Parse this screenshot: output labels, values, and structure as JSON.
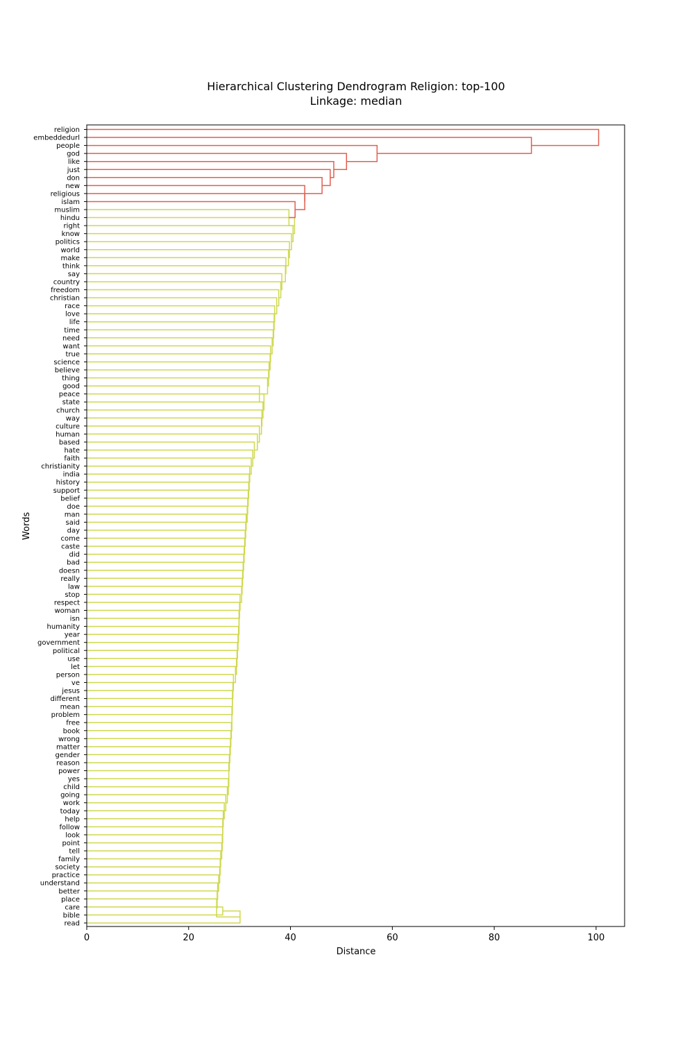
{
  "chart_data": {
    "type": "dendrogram",
    "title": "Hierarchical Clustering Dendrogram Religion: top-100",
    "subtitle": "Linkage: median",
    "xlabel": "Distance",
    "ylabel": "Words",
    "xlim": [
      0,
      105.6
    ],
    "xticks": [
      0,
      20,
      40,
      60,
      80,
      100
    ],
    "orientation": "right-to-left",
    "colors": {
      "upper_clusters": "#e15f4e",
      "lower_clusters": "#cfd84f"
    },
    "leaves": [
      "religion",
      "embeddedurl",
      "people",
      "god",
      "like",
      "just",
      "don",
      "new",
      "religious",
      "islam",
      "muslim",
      "hindu",
      "right",
      "know",
      "politics",
      "world",
      "make",
      "think",
      "say",
      "country",
      "freedom",
      "christian",
      "race",
      "love",
      "life",
      "time",
      "need",
      "want",
      "true",
      "science",
      "believe",
      "thing",
      "good",
      "peace",
      "state",
      "church",
      "way",
      "culture",
      "human",
      "based",
      "hate",
      "faith",
      "christianity",
      "india",
      "history",
      "support",
      "belief",
      "doe",
      "man",
      "said",
      "day",
      "come",
      "caste",
      "did",
      "bad",
      "doesn",
      "really",
      "law",
      "stop",
      "respect",
      "woman",
      "isn",
      "humanity",
      "year",
      "government",
      "political",
      "use",
      "let",
      "person",
      "ve",
      "jesus",
      "different",
      "mean",
      "problem",
      "free",
      "book",
      "wrong",
      "matter",
      "gender",
      "reason",
      "power",
      "yes",
      "child",
      "going",
      "work",
      "today",
      "help",
      "follow",
      "look",
      "point",
      "tell",
      "family",
      "society",
      "practice",
      "understand",
      "better",
      "place",
      "care",
      "bible",
      "read"
    ],
    "merge_heights": [
      100.5,
      87.3,
      57.0,
      51.0,
      48.5,
      47.8,
      46.2,
      42.8,
      42.8,
      40.9,
      39.7,
      40.8,
      40.5,
      40.2,
      39.8,
      39.6,
      39.1,
      39.0,
      38.3,
      38.1,
      37.7,
      37.3,
      36.9,
      36.8,
      36.7,
      36.6,
      36.4,
      36.1,
      36.0,
      35.8,
      35.7,
      35.5,
      33.9,
      34.8,
      34.6,
      34.4,
      34.3,
      33.9,
      33.5,
      32.9,
      32.6,
      32.3,
      32.0,
      31.9,
      31.8,
      31.7,
      31.6,
      31.5,
      31.3,
      31.2,
      31.1,
      31.0,
      30.9,
      30.8,
      30.7,
      30.6,
      30.5,
      30.4,
      30.1,
      30.0,
      29.9,
      29.9,
      29.8,
      29.7,
      29.6,
      29.5,
      29.4,
      29.2,
      28.8,
      28.7,
      28.6,
      28.6,
      28.5,
      28.5,
      28.4,
      28.3,
      28.2,
      28.1,
      28.0,
      27.9,
      27.9,
      27.8,
      27.6,
      27.3,
      27.0,
      26.8,
      26.7,
      26.7,
      26.6,
      26.5,
      26.3,
      26.2,
      26.1,
      25.9,
      25.7,
      25.6,
      25.5,
      26.7,
      30.1
    ]
  }
}
